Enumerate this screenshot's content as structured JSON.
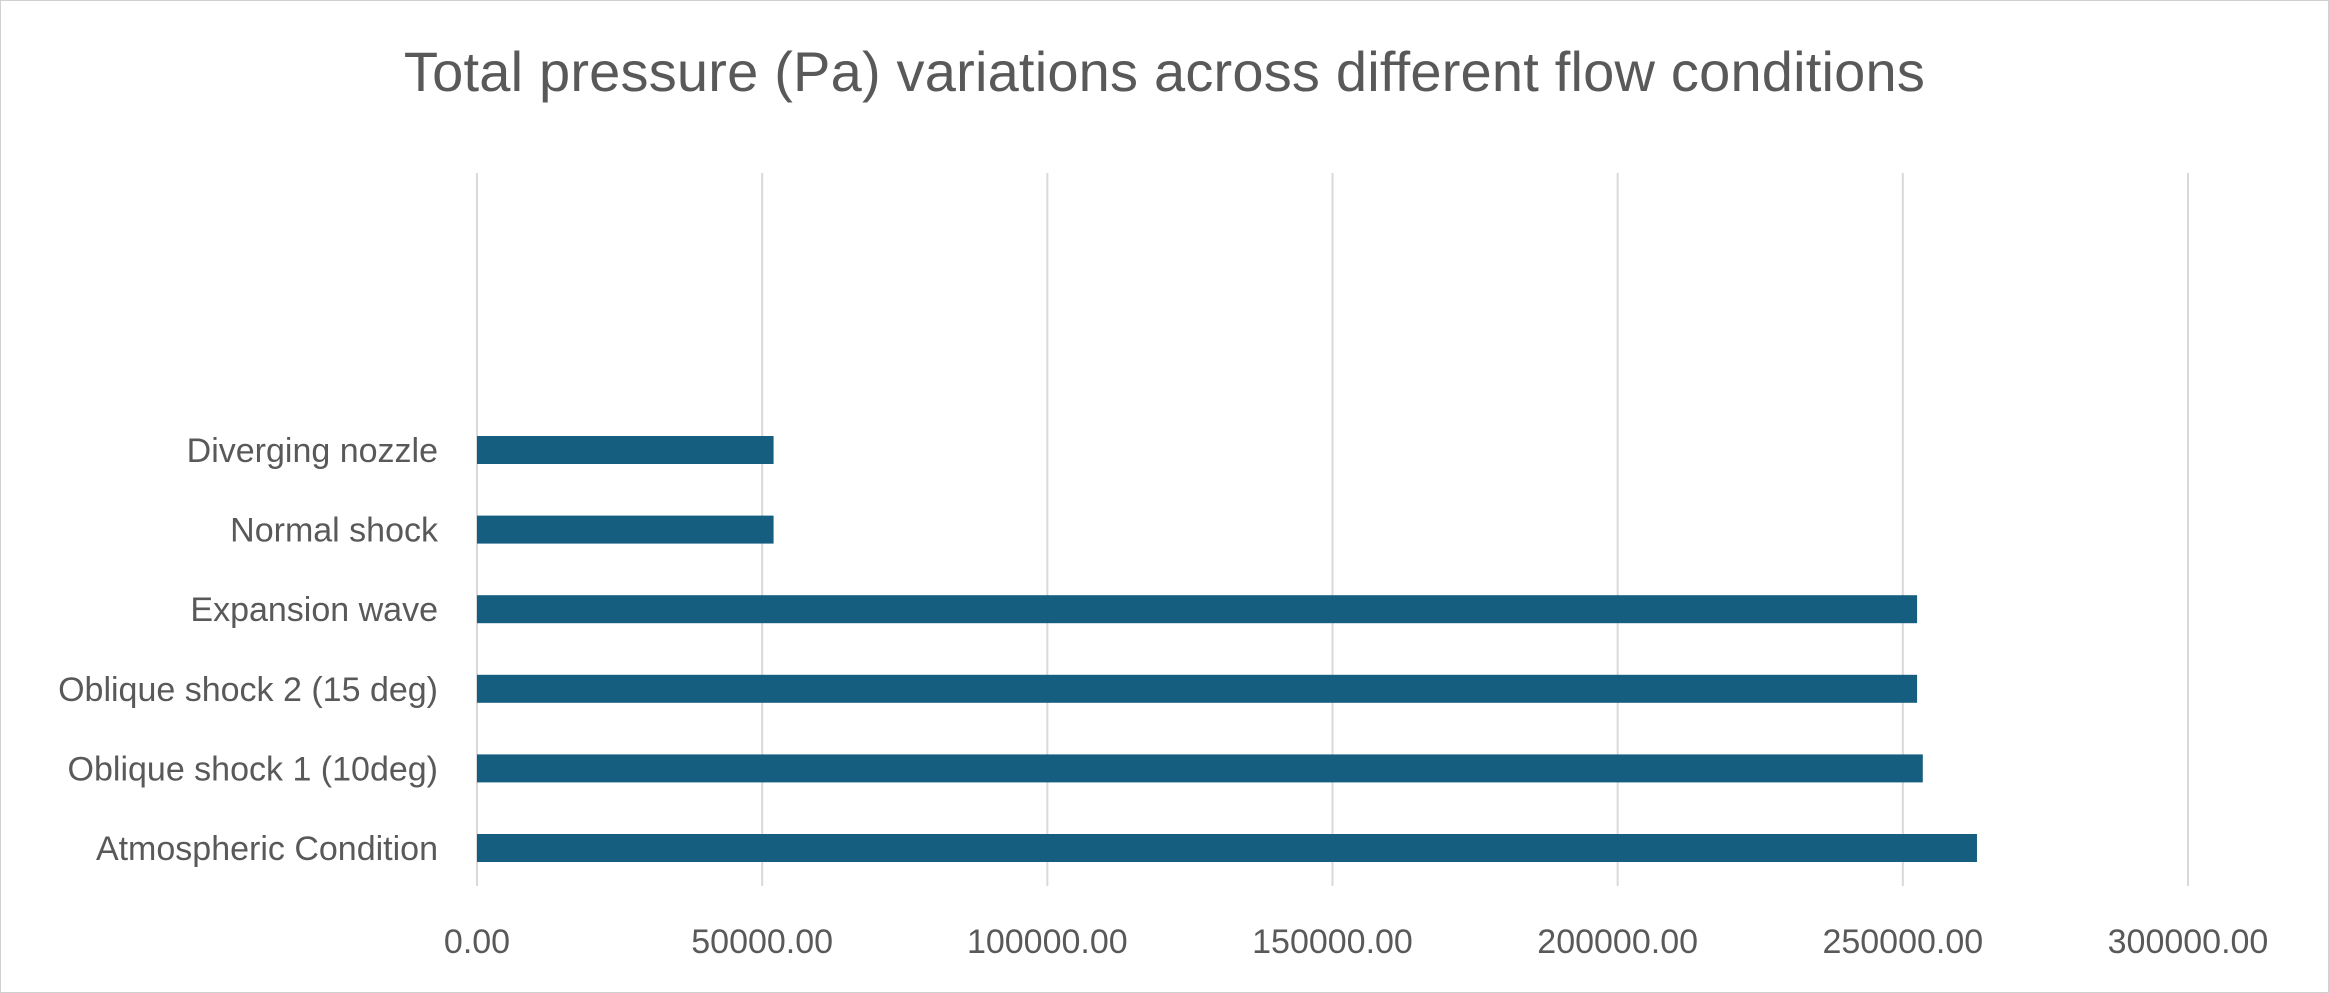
{
  "chart_data": {
    "type": "bar",
    "orientation": "horizontal",
    "title": "Total pressure (Pa) variations across different flow conditions",
    "xlabel": "",
    "ylabel": "",
    "categories": [
      "Atmospheric Condition",
      "Oblique shock 1 (10deg)",
      "Oblique shock 2 (15 deg)",
      "Expansion wave",
      "Normal shock",
      "Diverging nozzle"
    ],
    "values": [
      263000,
      253500,
      252500,
      252500,
      52000,
      52000
    ],
    "xlim": [
      0,
      300000
    ],
    "xticks": [
      0,
      50000,
      100000,
      150000,
      200000,
      250000,
      300000
    ],
    "xtick_labels": [
      "0.00",
      "50000.00",
      "100000.00",
      "150000.00",
      "200000.00",
      "250000.00",
      "300000.00"
    ],
    "bar_color": "#165E80",
    "grid": true,
    "legend": "none"
  }
}
